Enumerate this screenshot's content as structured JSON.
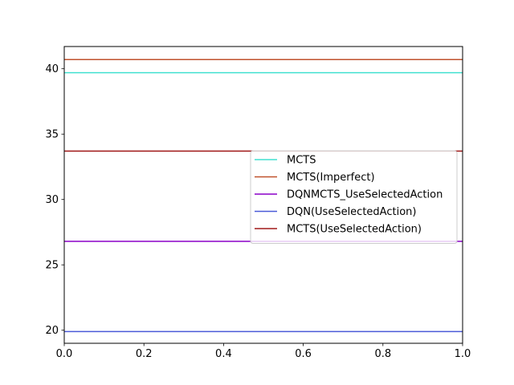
{
  "chart_data": {
    "type": "line",
    "title": "",
    "xlabel": "",
    "ylabel": "",
    "xlim": [
      0.0,
      1.0
    ],
    "ylim": [
      19.0,
      41.7
    ],
    "x_ticks": [
      0.0,
      0.2,
      0.4,
      0.6,
      0.8,
      1.0
    ],
    "x_tick_labels": [
      "0.0",
      "0.2",
      "0.4",
      "0.6",
      "0.8",
      "1.0"
    ],
    "y_ticks": [
      20,
      25,
      30,
      35,
      40
    ],
    "y_tick_labels": [
      "20",
      "25",
      "30",
      "35",
      "40"
    ],
    "grid": false,
    "legend_position": "center-right",
    "series": [
      {
        "name": "MCTS",
        "color": "#40e0d0",
        "x": [
          0.0,
          1.0
        ],
        "y": [
          39.7,
          39.7
        ]
      },
      {
        "name": "MCTS(Imperfect)",
        "color": "#c0522d",
        "x": [
          0.0,
          1.0
        ],
        "y": [
          40.7,
          40.7
        ]
      },
      {
        "name": "DQNMCTS_UseSelectedAction",
        "color": "#8b00c8",
        "x": [
          0.0,
          1.0
        ],
        "y": [
          26.8,
          26.8
        ]
      },
      {
        "name": "DQN(UseSelectedAction)",
        "color": "#4a5ad8",
        "x": [
          0.0,
          1.0
        ],
        "y": [
          19.9,
          19.9
        ]
      },
      {
        "name": "MCTS(UseSelectedAction)",
        "color": "#a01818",
        "x": [
          0.0,
          1.0
        ],
        "y": [
          33.7,
          33.7
        ]
      }
    ]
  }
}
